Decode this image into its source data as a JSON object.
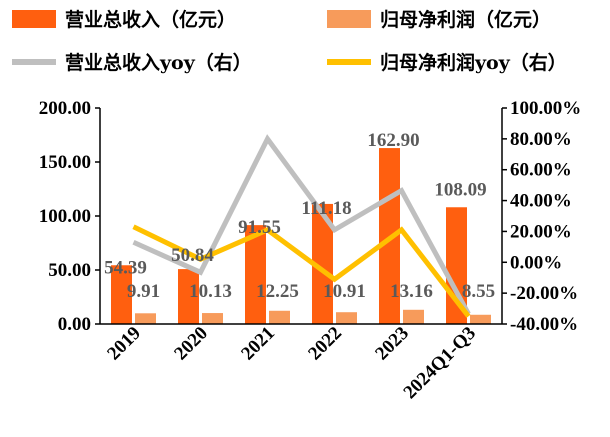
{
  "chart_data": {
    "type": "bar",
    "categories": [
      "2019",
      "2020",
      "2021",
      "2022",
      "2023",
      "2024Q1-Q3"
    ],
    "series": [
      {
        "name": "营业总收入（亿元）",
        "kind": "bar",
        "axis": "left",
        "color": "#FF5F0F",
        "values": [
          54.39,
          50.84,
          91.55,
          111.18,
          162.9,
          108.09
        ],
        "labels": [
          "54.39",
          "50.84",
          "91.55",
          "111.18",
          "162.90",
          "108.09"
        ]
      },
      {
        "name": "归母净利润（亿元）",
        "kind": "bar",
        "axis": "left",
        "color": "#F79B5B",
        "values": [
          9.91,
          10.13,
          12.25,
          10.91,
          13.16,
          8.55
        ],
        "labels": [
          "9.91",
          "10.13",
          "12.25",
          "10.91",
          "13.16",
          "8.55"
        ]
      },
      {
        "name": "营业总收入yoy（右）",
        "kind": "line",
        "axis": "right",
        "color": "#BFBFBF",
        "values": [
          0.13,
          -0.065,
          0.8,
          0.21,
          0.465,
          -0.335
        ]
      },
      {
        "name": "归母净利润yoy（右）",
        "kind": "line",
        "axis": "right",
        "color": "#FFC000",
        "values": [
          0.23,
          0.02,
          0.21,
          -0.11,
          0.21,
          -0.35
        ]
      }
    ],
    "left_axis": {
      "min": 0,
      "max": 200,
      "ticks": [
        "0.00",
        "50.00",
        "100.00",
        "150.00",
        "200.00"
      ]
    },
    "right_axis": {
      "min": -0.4,
      "max": 1.0,
      "ticks": [
        "-40.00%",
        "-20.00%",
        "0.00%",
        "20.00%",
        "40.00%",
        "60.00%",
        "80.00%",
        "100.00%"
      ]
    },
    "legend_placement": "top",
    "grid": false
  }
}
